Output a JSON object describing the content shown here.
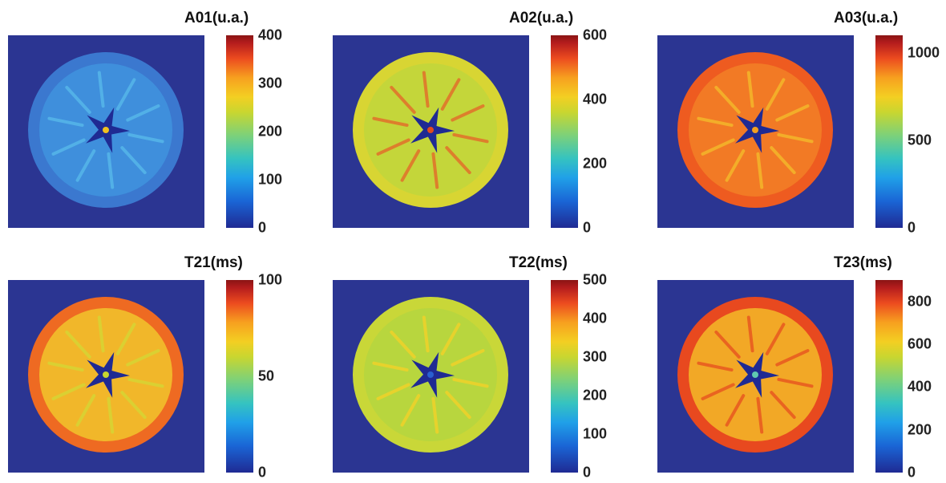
{
  "panels": [
    {
      "title": "A01(u.a.)",
      "ticks": [
        {
          "label": "400",
          "value": 400
        },
        {
          "label": "300",
          "value": 300
        },
        {
          "label": "200",
          "value": 200
        },
        {
          "label": "100",
          "value": 100
        },
        {
          "label": "0",
          "value": 0
        }
      ],
      "range": [
        0,
        400
      ],
      "colors": {
        "background": "#2b3592",
        "disk": "#3f8fdc",
        "disk_edge": "#3b78cf",
        "star": "#1f2a93",
        "center": "#f0c020",
        "spokes": "#56b6ea"
      }
    },
    {
      "title": "A02(u.a.)",
      "ticks": [
        {
          "label": "600",
          "value": 600
        },
        {
          "label": "400",
          "value": 400
        },
        {
          "label": "200",
          "value": 200
        },
        {
          "label": "0",
          "value": 0
        }
      ],
      "range": [
        0,
        600
      ],
      "colors": {
        "background": "#2b3592",
        "disk": "#c4d63a",
        "disk_edge": "#d8d533",
        "star": "#1f2a93",
        "center": "#e04a1f",
        "spokes": "#e2702a"
      }
    },
    {
      "title": "A03(u.a.)",
      "ticks": [
        {
          "label": "1000",
          "value": 1000
        },
        {
          "label": "500",
          "value": 500
        },
        {
          "label": "0",
          "value": 0
        }
      ],
      "range": [
        0,
        1100
      ],
      "colors": {
        "background": "#2b3592",
        "disk": "#f27a25",
        "disk_edge": "#ee5b20",
        "star": "#1f2a93",
        "center": "#f3a020",
        "spokes": "#f4b62a"
      }
    },
    {
      "title": "T21(ms)",
      "ticks": [
        {
          "label": "100",
          "value": 100
        },
        {
          "label": "50",
          "value": 50
        },
        {
          "label": "0",
          "value": 0
        }
      ],
      "range": [
        0,
        100
      ],
      "colors": {
        "background": "#2b3592",
        "disk": "#f1b72a",
        "disk_edge": "#ee6a22",
        "star": "#1f2a93",
        "center": "#c8d630",
        "spokes": "#d7d534"
      }
    },
    {
      "title": "T22(ms)",
      "ticks": [
        {
          "label": "500",
          "value": 500
        },
        {
          "label": "400",
          "value": 400
        },
        {
          "label": "300",
          "value": 300
        },
        {
          "label": "200",
          "value": 200
        },
        {
          "label": "100",
          "value": 100
        },
        {
          "label": "0",
          "value": 0
        }
      ],
      "range": [
        0,
        500
      ],
      "colors": {
        "background": "#2b3592",
        "disk": "#b8d63e",
        "disk_edge": "#c9d738",
        "star": "#1f2a93",
        "center": "#2a5fd0",
        "spokes": "#f0d22a"
      }
    },
    {
      "title": "T23(ms)",
      "ticks": [
        {
          "label": "800",
          "value": 800
        },
        {
          "label": "600",
          "value": 600
        },
        {
          "label": "400",
          "value": 400
        },
        {
          "label": "200",
          "value": 200
        },
        {
          "label": "0",
          "value": 0
        }
      ],
      "range": [
        0,
        900
      ],
      "colors": {
        "background": "#2b3592",
        "disk": "#f2a826",
        "disk_edge": "#e8491f",
        "star": "#1f2a93",
        "center": "#5fc8b0",
        "spokes": "#e8591f"
      }
    }
  ]
}
